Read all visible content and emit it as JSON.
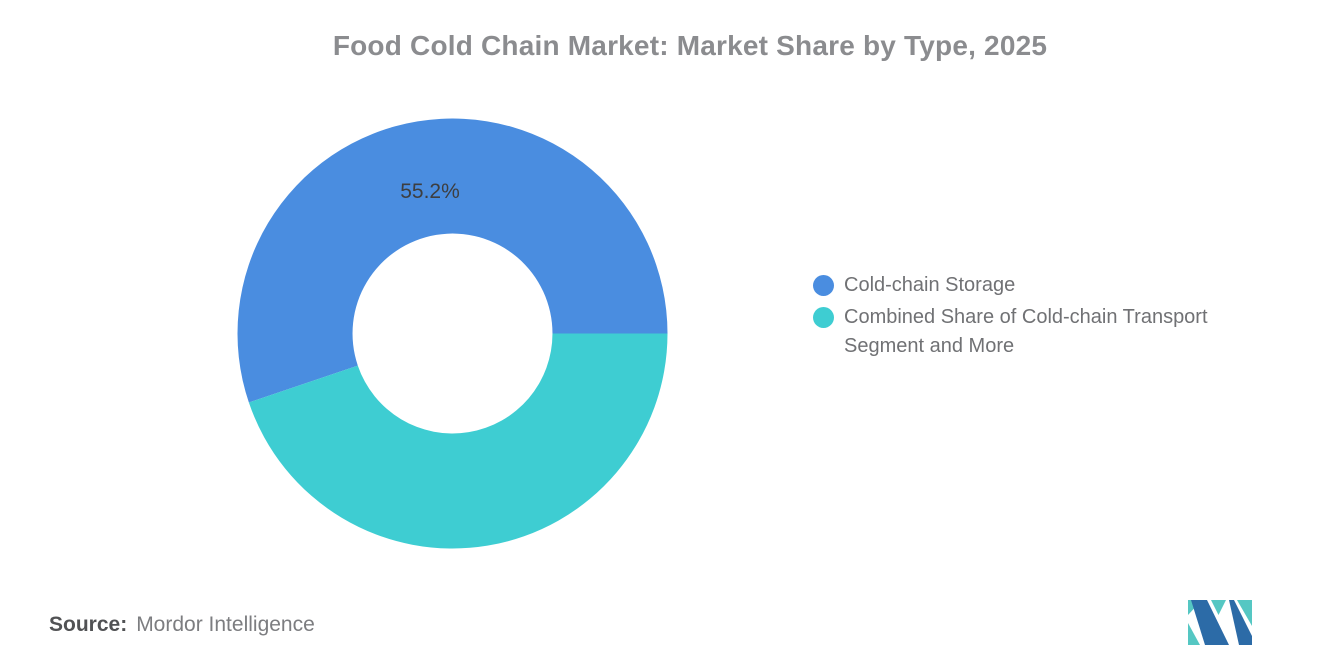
{
  "chart_data": {
    "type": "pie",
    "subtype": "donut",
    "title": "Food Cold Chain Market: Market Share by Type, 2025",
    "categories": [
      "Cold-chain Storage",
      "Combined Share of Cold-chain Transport Segment and More"
    ],
    "values": [
      55.2,
      44.8
    ],
    "unit": "%",
    "colors": [
      "#4A8DE0",
      "#3ECDD2"
    ],
    "data_labels": [
      "55.2%",
      ""
    ],
    "start_angle": "east",
    "direction": "counterclockwise",
    "inner_radius_ratio": 0.465,
    "legend_position": "right",
    "title_color": "#8b8c8f",
    "label_color": "#3d3e40"
  },
  "source": {
    "label": "Source:",
    "value": "Mordor Intelligence"
  },
  "logo": {
    "name": "Mordor Intelligence",
    "blue": "#2C6BA7",
    "teal": "#55C7C3"
  }
}
